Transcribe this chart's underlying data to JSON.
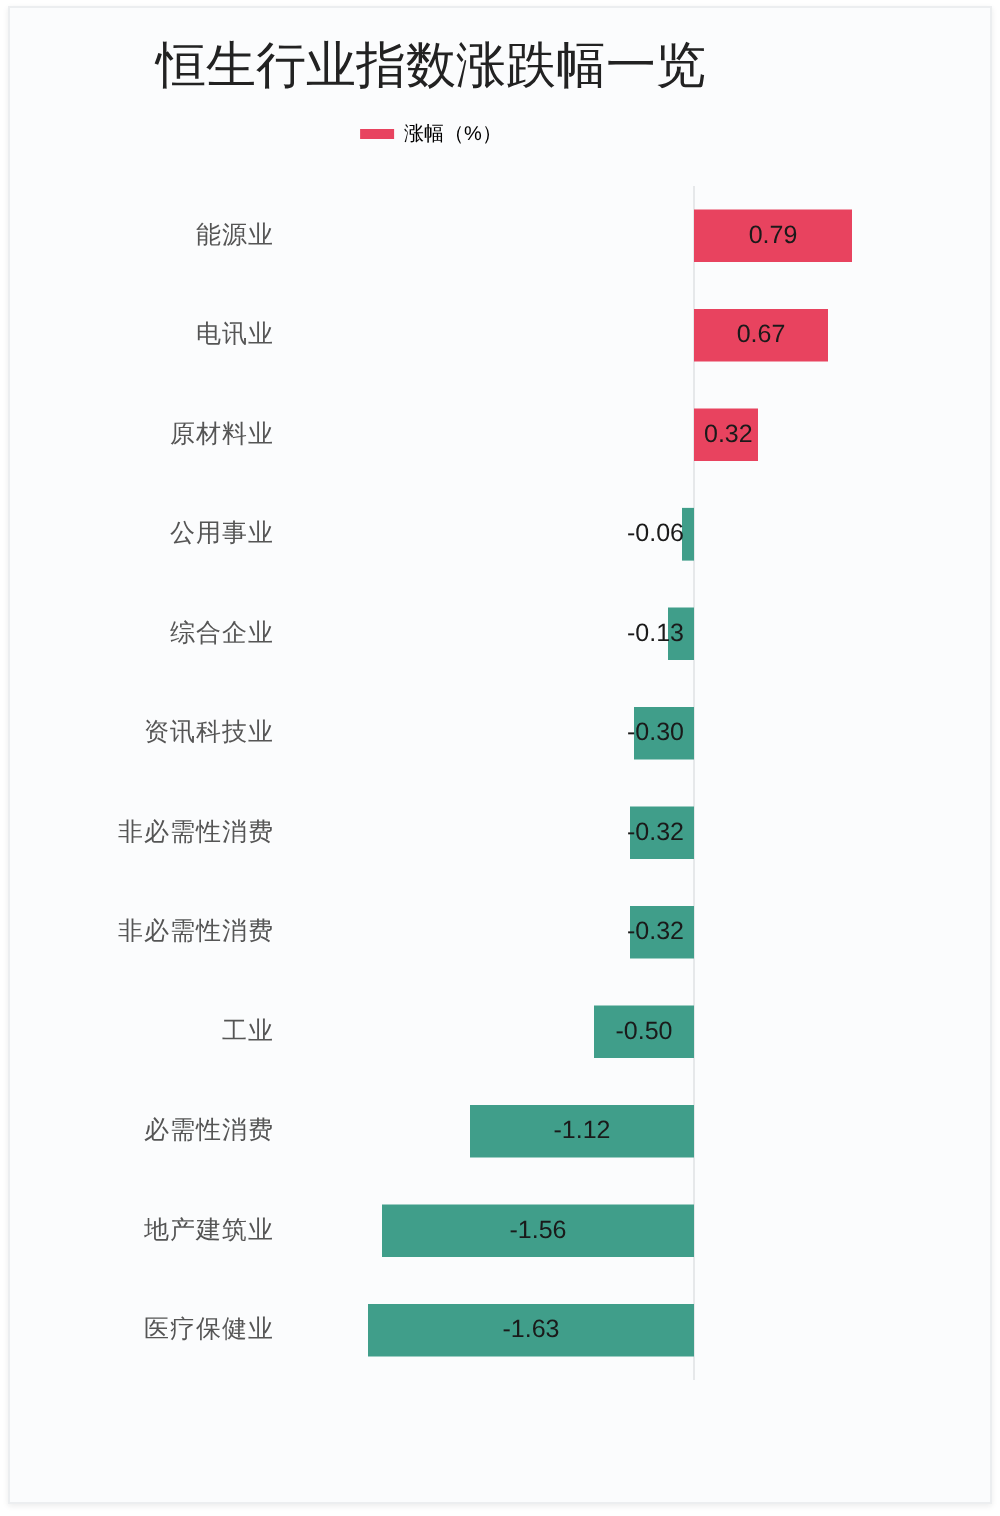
{
  "chart_data": {
    "type": "bar",
    "orientation": "horizontal",
    "title": "恒生行业指数涨跌幅一览",
    "categories": [
      "能源业",
      "电讯业",
      "原材料业",
      "公用事业",
      "综合企业",
      "资讯科技业",
      "非必需性消费",
      "非必需性消费",
      "工业",
      "必需性消费",
      "地产建筑业",
      "医疗保健业"
    ],
    "series": [
      {
        "name": "涨幅（%）",
        "color": "#e8435f",
        "colors": [
          "#e8435f",
          "#e8435f",
          "#e8435f",
          "#409e8a",
          "#409e8a",
          "#409e8a",
          "#409e8a",
          "#409e8a",
          "#409e8a",
          "#409e8a",
          "#409e8a",
          "#409e8a"
        ],
        "values": [
          0.79,
          0.67,
          0.32,
          -0.06,
          -0.13,
          -0.3,
          -0.32,
          -0.32,
          -0.5,
          -1.12,
          -1.56,
          -1.63
        ],
        "value_labels": [
          "0.79",
          "0.67",
          "0.32",
          "-0.06",
          "-0.13",
          "-0.30",
          "-0.32",
          "-0.32",
          "-0.50",
          "-1.12",
          "-1.56",
          "-1.63"
        ]
      }
    ],
    "legend": "top",
    "tick_labels": "y"
  }
}
